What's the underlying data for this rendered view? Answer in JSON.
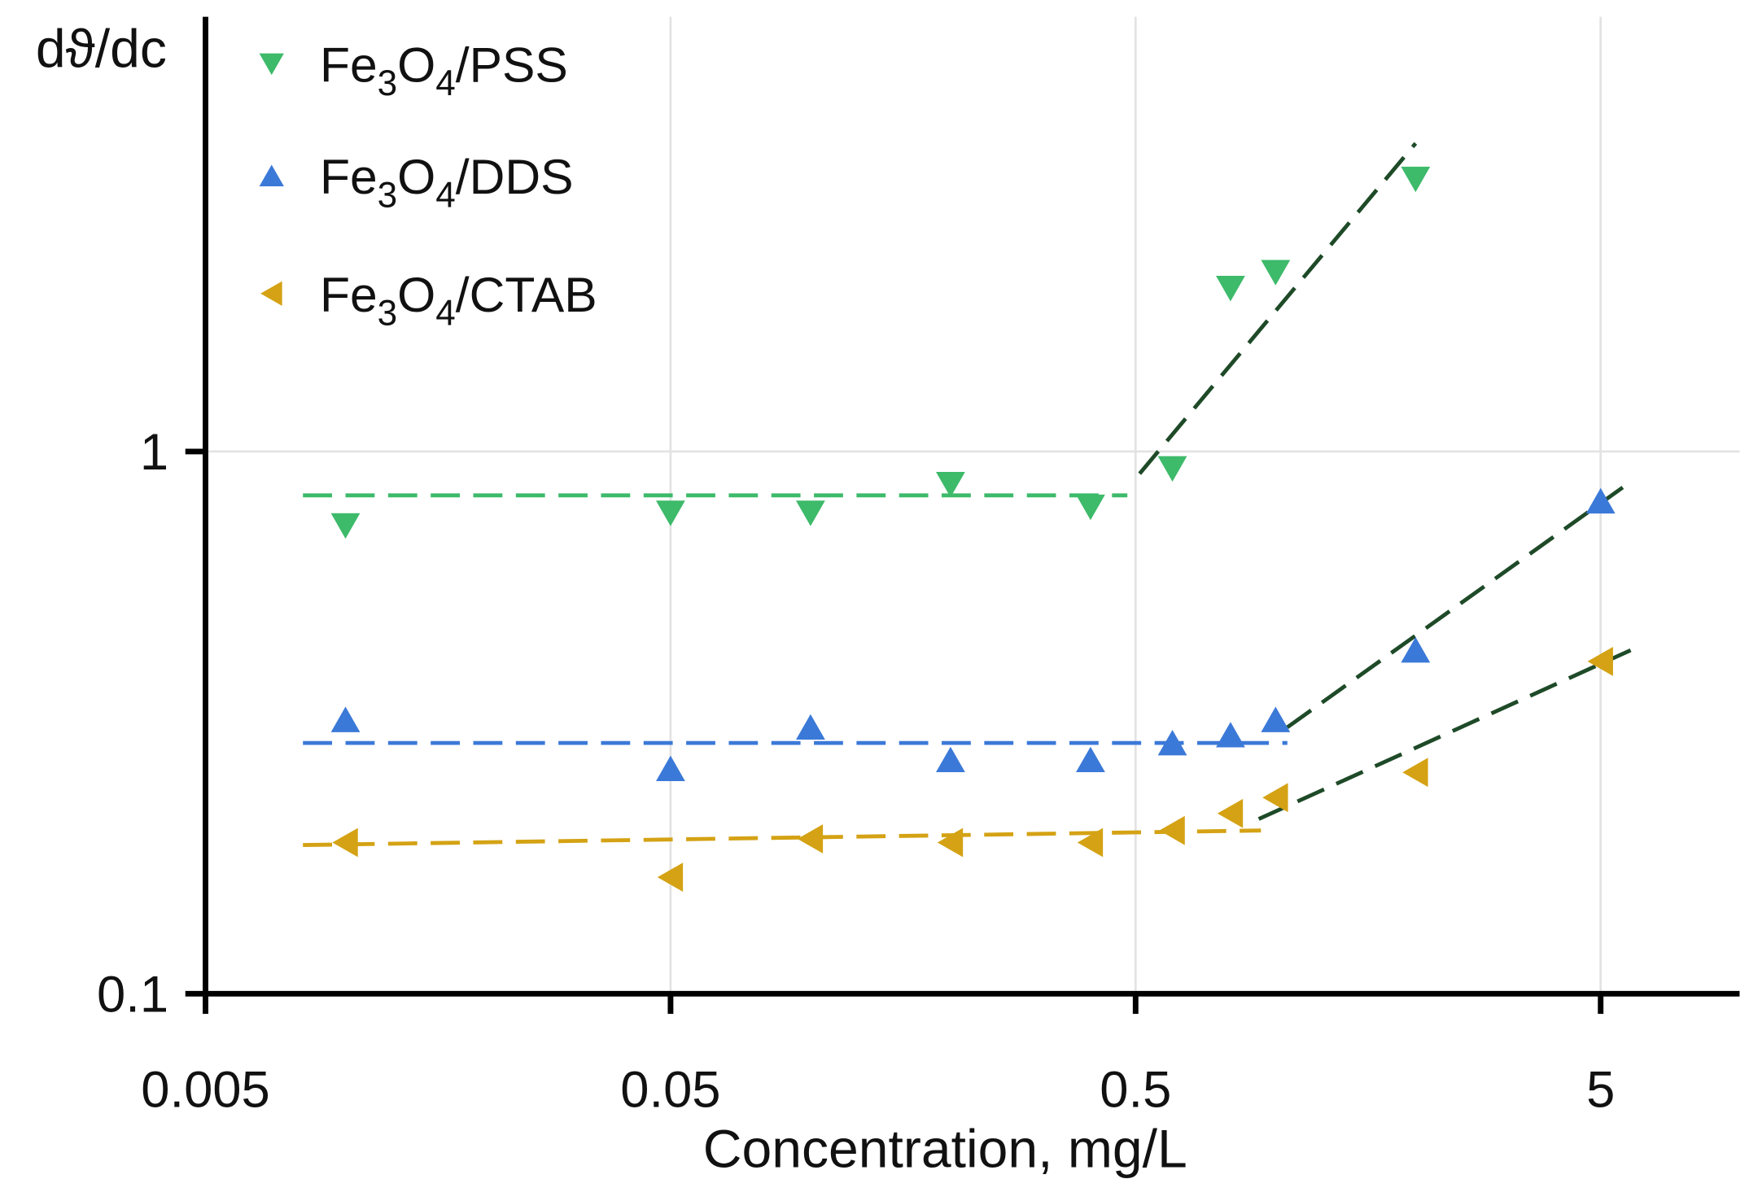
{
  "chart_data": {
    "type": "scatter",
    "title": "",
    "xlabel": "Concentration, mg/L",
    "ylabel": "dϑ/dc",
    "xscale": "log",
    "yscale": "log",
    "xlim": [
      0.005,
      7
    ],
    "ylim": [
      0.1,
      5
    ],
    "xticks": [
      0.005,
      0.05,
      0.5,
      5
    ],
    "xtick_labels": [
      "0.005",
      "0.05",
      "0.5",
      "5"
    ],
    "yticks": [
      0.1,
      1
    ],
    "ytick_labels": [
      "0.1",
      "1"
    ],
    "grid": true,
    "legend_position": "top-left",
    "series": [
      {
        "name": "Fe3O4/PSS",
        "marker": "triangle-down",
        "color": "#3dba6a",
        "x": [
          0.01,
          0.05,
          0.1,
          0.2,
          0.4,
          0.6,
          0.8,
          1.0,
          2.0
        ],
        "y": [
          0.73,
          0.77,
          0.77,
          0.87,
          0.79,
          0.93,
          2.0,
          2.14,
          3.18
        ]
      },
      {
        "name": "Fe3O4/DDS",
        "marker": "triangle-up",
        "color": "#3b79d8",
        "x": [
          0.01,
          0.05,
          0.1,
          0.2,
          0.4,
          0.6,
          0.8,
          1.0,
          2.0,
          5.0
        ],
        "y": [
          0.32,
          0.26,
          0.31,
          0.27,
          0.27,
          0.29,
          0.3,
          0.32,
          0.43,
          0.81
        ]
      },
      {
        "name": "Fe3O4/CTAB",
        "marker": "triangle-left",
        "color": "#d4a214",
        "x": [
          0.01,
          0.05,
          0.1,
          0.2,
          0.4,
          0.6,
          0.8,
          1.0,
          2.0,
          5.0
        ],
        "y": [
          0.19,
          0.164,
          0.193,
          0.19,
          0.19,
          0.2,
          0.215,
          0.23,
          0.256,
          0.41
        ]
      }
    ],
    "fit_lines": [
      {
        "series": "Fe3O4/PSS",
        "color": "#3dba6a",
        "x": [
          0.0081,
          0.48
        ],
        "y": [
          0.83,
          0.83
        ]
      },
      {
        "series": "Fe3O4/PSS",
        "color": "#1e4a28",
        "x": [
          0.51,
          2.0
        ],
        "y": [
          0.91,
          3.7
        ]
      },
      {
        "series": "Fe3O4/DDS",
        "color": "#3b79d8",
        "x": [
          0.0081,
          1.06
        ],
        "y": [
          0.29,
          0.29
        ]
      },
      {
        "series": "Fe3O4/DDS",
        "color": "#1e4a28",
        "x": [
          1.06,
          5.7
        ],
        "y": [
          0.31,
          0.87
        ]
      },
      {
        "series": "Fe3O4/CTAB",
        "color": "#d4a214",
        "x": [
          0.0081,
          0.93
        ],
        "y": [
          0.188,
          0.2
        ]
      },
      {
        "series": "Fe3O4/CTAB",
        "color": "#1e4a28",
        "x": [
          0.92,
          5.8
        ],
        "y": [
          0.21,
          0.43
        ]
      }
    ]
  }
}
